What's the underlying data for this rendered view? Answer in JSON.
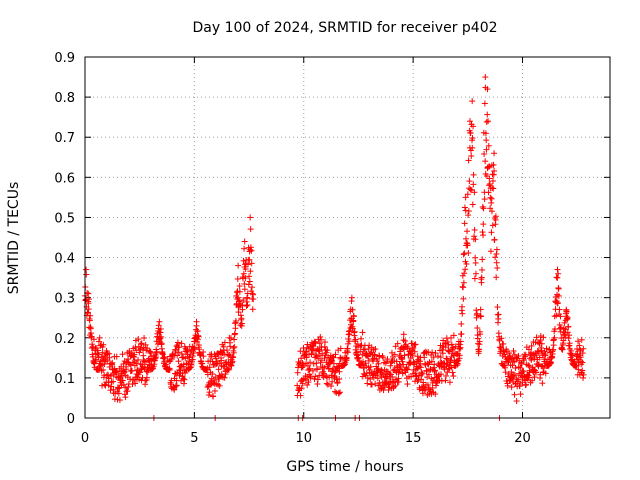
{
  "chart_data": {
    "type": "scatter",
    "title": "Day 100 of 2024, SRMTID for receiver p402",
    "xlabel": "GPS time / hours",
    "ylabel": "SRMTID / TECUs",
    "xlim": [
      0,
      24
    ],
    "ylim": [
      0,
      0.9
    ],
    "xticks": [
      0,
      5,
      10,
      15,
      20
    ],
    "yticks": [
      0,
      0.1,
      0.2,
      0.3,
      0.4,
      0.5,
      0.6,
      0.7,
      0.8,
      0.9
    ],
    "grid": true,
    "marker": "+",
    "color": "#ff0000",
    "segments": [
      {
        "start": 0.0,
        "end": 7.7,
        "base": 0.12,
        "noise": 0.05
      },
      {
        "start": 9.7,
        "end": 22.8,
        "base": 0.13,
        "noise": 0.05
      }
    ],
    "peaks": [
      {
        "t": 0.05,
        "value": 0.37
      },
      {
        "t": 0.15,
        "value": 0.31
      },
      {
        "t": 3.4,
        "value": 0.24
      },
      {
        "t": 5.1,
        "value": 0.24
      },
      {
        "t": 7.0,
        "value": 0.38
      },
      {
        "t": 7.3,
        "value": 0.44
      },
      {
        "t": 7.55,
        "value": 0.5
      },
      {
        "t": 12.2,
        "value": 0.3
      },
      {
        "t": 17.4,
        "value": 0.55
      },
      {
        "t": 17.6,
        "value": 0.74
      },
      {
        "t": 17.7,
        "value": 0.79
      },
      {
        "t": 18.3,
        "value": 0.85
      },
      {
        "t": 18.4,
        "value": 0.82
      },
      {
        "t": 18.6,
        "value": 0.63
      },
      {
        "t": 18.7,
        "value": 0.66
      },
      {
        "t": 21.6,
        "value": 0.37
      },
      {
        "t": 22.0,
        "value": 0.27
      }
    ],
    "zero_markers": [
      3.15,
      5.95,
      9.75,
      9.95,
      11.45,
      12.35,
      12.55,
      18.95
    ]
  }
}
